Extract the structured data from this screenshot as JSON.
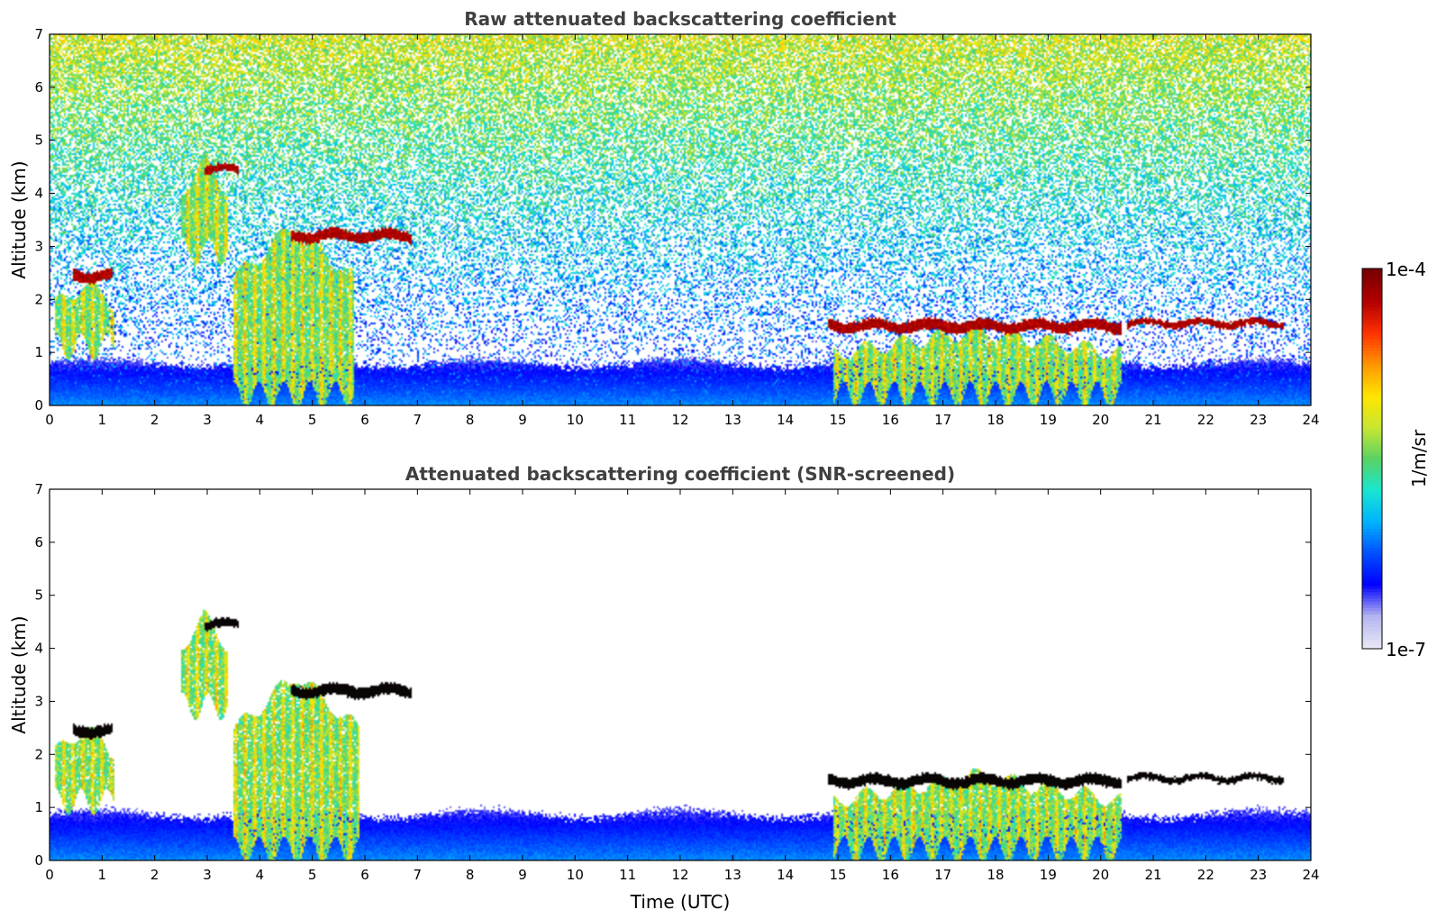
{
  "chart_data": [
    {
      "type": "heatmap",
      "title": "Raw attenuated backscattering coefficient",
      "xlabel": "",
      "ylabel": "Altitude (km)",
      "xlim": [
        0,
        24
      ],
      "ylim": [
        0,
        7
      ],
      "x_ticks": [
        "0",
        "1",
        "2",
        "3",
        "4",
        "5",
        "6",
        "7",
        "8",
        "9",
        "10",
        "11",
        "12",
        "13",
        "14",
        "15",
        "16",
        "17",
        "18",
        "19",
        "20",
        "21",
        "22",
        "23",
        "24"
      ],
      "y_ticks": [
        "0",
        "1",
        "2",
        "3",
        "4",
        "5",
        "6",
        "7"
      ],
      "screened": false,
      "features": [
        {
          "kind": "aerosol_layer",
          "x_range": [
            0,
            24
          ],
          "top_km": 0.8,
          "level": "low"
        },
        {
          "kind": "cloud",
          "x_range": [
            0.45,
            1.2
          ],
          "alt_km": 2.45,
          "thickness_km": 0.2,
          "level": "high"
        },
        {
          "kind": "precip",
          "x_range": [
            0.1,
            1.25
          ],
          "top_km": 2.3,
          "bottom_km": 0.9,
          "level": "medium"
        },
        {
          "kind": "cloud",
          "x_range": [
            2.95,
            3.6
          ],
          "alt_km": 4.45,
          "thickness_km": 0.15,
          "level": "high"
        },
        {
          "kind": "precip",
          "x_range": [
            2.5,
            3.4
          ],
          "top_km": 4.6,
          "bottom_km": 2.7,
          "level": "medium"
        },
        {
          "kind": "cloud",
          "x_range": [
            4.6,
            6.9
          ],
          "alt_km": 3.2,
          "thickness_km": 0.2,
          "level": "high"
        },
        {
          "kind": "precip",
          "x_range": [
            3.5,
            5.8
          ],
          "top_km": 3.4,
          "bottom_km": 0.0,
          "level": "medium"
        },
        {
          "kind": "cloud",
          "x_range": [
            14.8,
            20.4
          ],
          "alt_km": 1.5,
          "thickness_km": 0.2,
          "level": "high"
        },
        {
          "kind": "cloud",
          "x_range": [
            20.5,
            23.5
          ],
          "alt_km": 1.55,
          "thickness_km": 0.12,
          "level": "high"
        },
        {
          "kind": "precip",
          "x_range": [
            14.9,
            20.4
          ],
          "top_km": 1.4,
          "bottom_km": 0.0,
          "level": "medium"
        }
      ]
    },
    {
      "type": "heatmap",
      "title": "Attenuated backscattering coefficient (SNR-screened)",
      "xlabel": "Time (UTC)",
      "ylabel": "Altitude (km)",
      "xlim": [
        0,
        24
      ],
      "ylim": [
        0,
        7
      ],
      "x_ticks": [
        "0",
        "1",
        "2",
        "3",
        "4",
        "5",
        "6",
        "7",
        "8",
        "9",
        "10",
        "11",
        "12",
        "13",
        "14",
        "15",
        "16",
        "17",
        "18",
        "19",
        "20",
        "21",
        "22",
        "23",
        "24"
      ],
      "y_ticks": [
        "0",
        "1",
        "2",
        "3",
        "4",
        "5",
        "6",
        "7"
      ],
      "screened": true,
      "features": [
        {
          "kind": "aerosol_layer",
          "x_range": [
            0,
            24
          ],
          "top_km": 0.9,
          "level": "low"
        },
        {
          "kind": "cloud",
          "x_range": [
            0.45,
            1.2
          ],
          "alt_km": 2.45,
          "thickness_km": 0.2,
          "level": "saturated"
        },
        {
          "kind": "precip",
          "x_range": [
            0.1,
            1.25
          ],
          "top_km": 2.5,
          "bottom_km": 0.9,
          "level": "medium"
        },
        {
          "kind": "cloud",
          "x_range": [
            2.95,
            3.6
          ],
          "alt_km": 4.45,
          "thickness_km": 0.15,
          "level": "saturated"
        },
        {
          "kind": "precip",
          "x_range": [
            2.5,
            3.4
          ],
          "top_km": 4.6,
          "bottom_km": 2.7,
          "level": "medium"
        },
        {
          "kind": "cloud",
          "x_range": [
            4.6,
            6.9
          ],
          "alt_km": 3.2,
          "thickness_km": 0.2,
          "level": "saturated"
        },
        {
          "kind": "precip",
          "x_range": [
            3.5,
            5.9
          ],
          "top_km": 3.5,
          "bottom_km": 0.0,
          "level": "medium"
        },
        {
          "kind": "cloud",
          "x_range": [
            14.8,
            20.4
          ],
          "alt_km": 1.5,
          "thickness_km": 0.2,
          "level": "saturated"
        },
        {
          "kind": "cloud",
          "x_range": [
            20.5,
            23.5
          ],
          "alt_km": 1.55,
          "thickness_km": 0.12,
          "level": "saturated"
        },
        {
          "kind": "precip",
          "x_range": [
            14.9,
            20.4
          ],
          "top_km": 1.6,
          "bottom_km": 0.0,
          "level": "medium"
        }
      ]
    }
  ],
  "colorbar": {
    "label": "1/m/sr",
    "min_label": "1e-7",
    "max_label": "1e-4",
    "scale": "log",
    "colormap": [
      "#e8e8f6",
      "#b4b4f0",
      "#0000ff",
      "#0050ff",
      "#00b4ff",
      "#19e6d2",
      "#5ad264",
      "#c8e632",
      "#ffe600",
      "#ff9600",
      "#ff3200",
      "#b40000",
      "#780000"
    ]
  }
}
